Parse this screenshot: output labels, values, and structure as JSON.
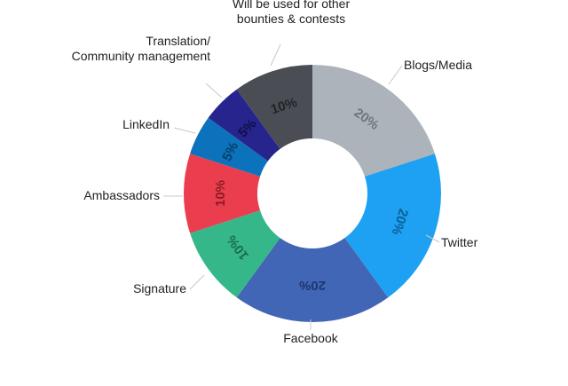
{
  "chart_data": {
    "type": "pie",
    "donut": true,
    "title": "",
    "slices": [
      {
        "label": "Blogs/Media",
        "value": 20,
        "display": "20%",
        "color": "#adb3ba",
        "text_color": "#6e757c",
        "label_lines": [
          "Blogs/Media"
        ]
      },
      {
        "label": "Twitter",
        "value": 20,
        "display": "20%",
        "color": "#1ea1f2",
        "text_color": "#0c5f96",
        "label_lines": [
          "Twitter"
        ]
      },
      {
        "label": "Facebook",
        "value": 20,
        "display": "20%",
        "color": "#4166b5",
        "text_color": "#1f3670",
        "label_lines": [
          "Facebook"
        ]
      },
      {
        "label": "Signature",
        "value": 10,
        "display": "10%",
        "color": "#35b78a",
        "text_color": "#1b6e50",
        "label_lines": [
          "Signature"
        ]
      },
      {
        "label": "Ambassadors",
        "value": 10,
        "display": "10%",
        "color": "#ea3e4e",
        "text_color": "#8e1a25",
        "label_lines": [
          "Ambassadors"
        ]
      },
      {
        "label": "LinkedIn",
        "value": 5,
        "display": "5%",
        "color": "#0b72bb",
        "text_color": "#063f6a",
        "label_lines": [
          "LinkedIn"
        ]
      },
      {
        "label": "Translation/ Community management",
        "value": 5,
        "display": "5%",
        "color": "#27258d",
        "text_color": "#0f0e45",
        "label_lines": [
          "Translation/",
          "Community management"
        ]
      },
      {
        "label": "Will be used for other bounties & contests",
        "value": 10,
        "display": "10%",
        "color": "#4a4d54",
        "text_color": "#22242a",
        "label_lines": [
          "Will be used for other",
          "bounties & contests"
        ]
      }
    ]
  }
}
